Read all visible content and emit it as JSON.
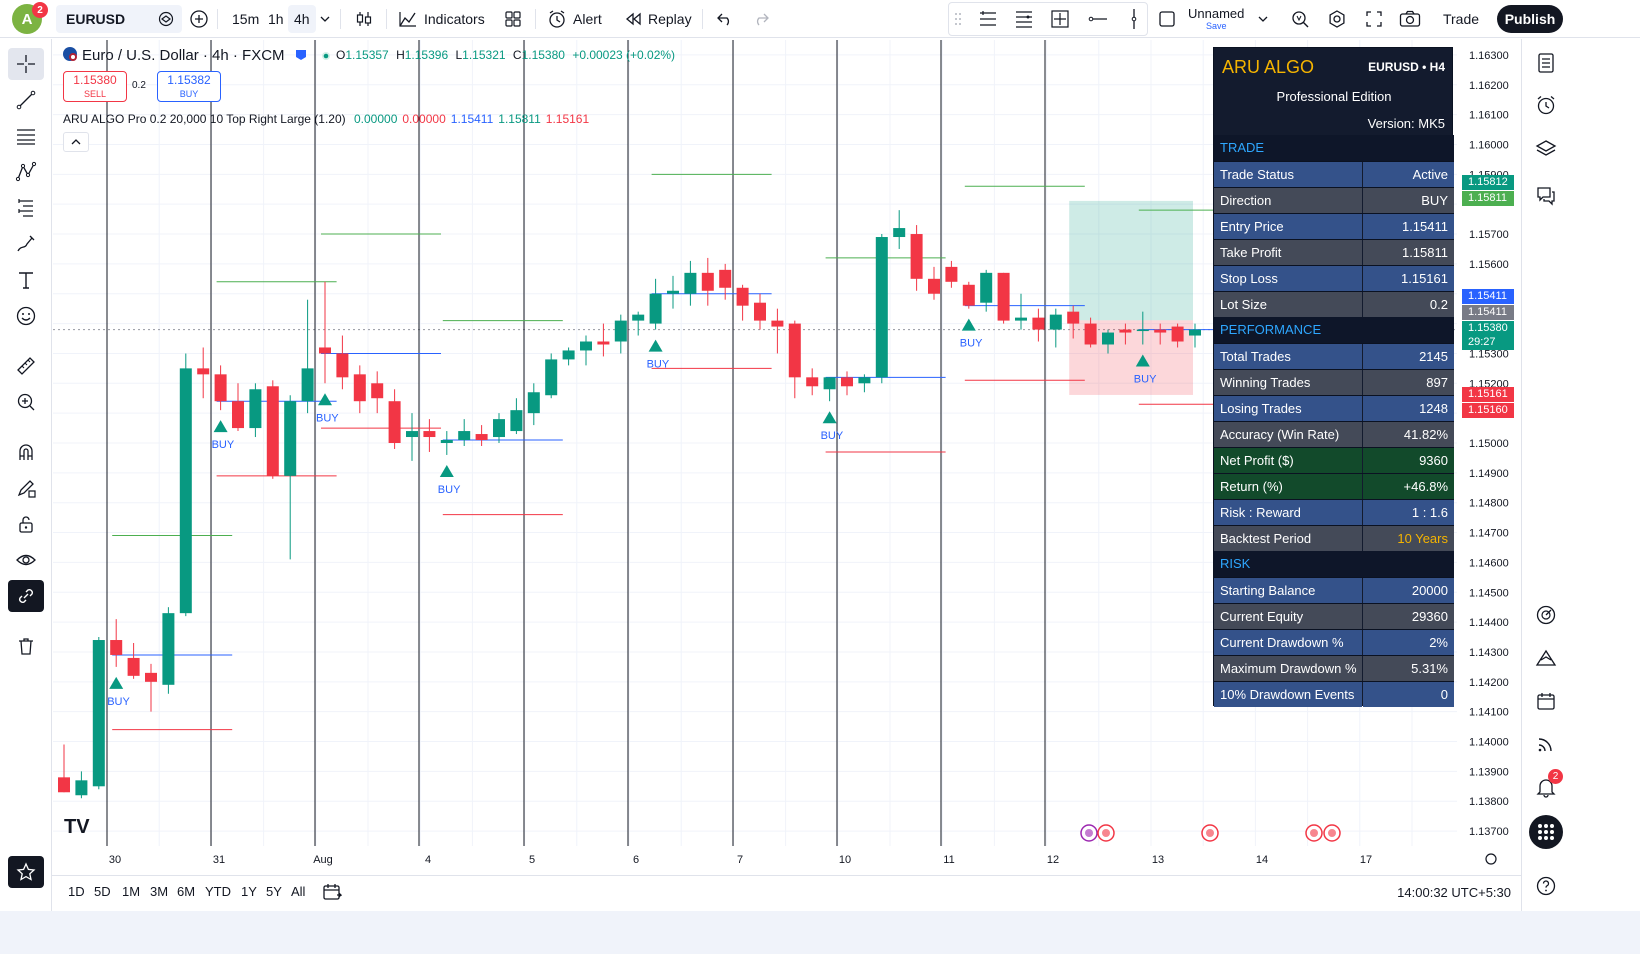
{
  "topbar": {
    "avatar_letter": "A",
    "avatar_badge": "2",
    "symbol": "EURUSD",
    "timeframes": [
      "15m",
      "1h",
      "4h"
    ],
    "active_timeframe": "4h",
    "indicators_label": "Indicators",
    "alert_label": "Alert",
    "replay_label": "Replay",
    "layout_name": "Unnamed",
    "save_label": "Save",
    "trade_label": "Trade",
    "publish_label": "Publish"
  },
  "legend": {
    "title": "Euro / U.S. Dollar · 4h · FXCM",
    "ohlc": [
      {
        "label": "O",
        "value": "1.15357"
      },
      {
        "label": "H",
        "value": "1.15396"
      },
      {
        "label": "L",
        "value": "1.15321"
      },
      {
        "label": "C",
        "value": "1.15380"
      }
    ],
    "change": "+0.00023 (+0.02%)",
    "sell_price": "1.15380",
    "sell_label": "SELL",
    "spread": "0.2",
    "buy_price": "1.15382",
    "buy_label": "BUY",
    "indicator_name": "ARU ALGO Pro",
    "indicator_params": "0.2 20,000 10 Top Right Large (1.20)",
    "indicator_values": [
      {
        "value": "0.00000",
        "color": "#089981"
      },
      {
        "value": "0.00000",
        "color": "#f23645"
      },
      {
        "value": "1.15411",
        "color": "#2962ff"
      },
      {
        "value": "1.15811",
        "color": "#089981"
      },
      {
        "value": "1.15161",
        "color": "#f23645"
      }
    ]
  },
  "panel": {
    "brand": "ARU ALGO",
    "pair": "EURUSD • H4",
    "edition": "Professional Edition",
    "version": "Version: MK5",
    "sections": [
      {
        "title": "TRADE",
        "rows": [
          {
            "label": "Trade Status",
            "value": "Active",
            "style": "c-blue"
          },
          {
            "label": "Direction",
            "value": "BUY",
            "style": "c-gray"
          },
          {
            "label": "Entry Price",
            "value": "1.15411",
            "style": "c-blue"
          },
          {
            "label": "Take Profit",
            "value": "1.15811",
            "style": "c-gray"
          },
          {
            "label": "Stop Loss",
            "value": "1.15161",
            "style": "c-blue"
          },
          {
            "label": "Lot Size",
            "value": "0.2",
            "style": "c-gray"
          }
        ]
      },
      {
        "title": "PERFORMANCE",
        "rows": [
          {
            "label": "Total Trades",
            "value": "2145",
            "style": "c-blue"
          },
          {
            "label": "Winning Trades",
            "value": "897",
            "style": "c-gray"
          },
          {
            "label": "Losing Trades",
            "value": "1248",
            "style": "c-blue"
          },
          {
            "label": "Accuracy (Win Rate)",
            "value": "41.82%",
            "style": "c-gray"
          },
          {
            "label": "Net Profit ($)",
            "value": "9360",
            "style": "c-green"
          },
          {
            "label": "Return (%)",
            "value": "+46.8%",
            "style": "c-green"
          },
          {
            "label": "Risk : Reward",
            "value": "1 : 1.6",
            "style": "c-blue"
          },
          {
            "label": "Backtest Period",
            "value": "10 Years",
            "style": "c-gray",
            "gold": true
          }
        ]
      },
      {
        "title": "RISK",
        "rows": [
          {
            "label": "Starting Balance",
            "value": "20000",
            "style": "c-blue"
          },
          {
            "label": "Current Equity",
            "value": "29360",
            "style": "c-gray"
          },
          {
            "label": "Current Drawdown %",
            "value": "2%",
            "style": "c-blue"
          },
          {
            "label": "Maximum Drawdown %",
            "value": "5.31%",
            "style": "c-gray"
          },
          {
            "label": "10% Drawdown Events",
            "value": "0",
            "style": "c-blue"
          }
        ]
      }
    ]
  },
  "price_axis": {
    "ticks": [
      "1.16300",
      "1.16200",
      "1.16100",
      "1.16000",
      "1.15900",
      "1.15700",
      "1.15600",
      "1.15300",
      "1.15200",
      "1.15000",
      "1.14900",
      "1.14800",
      "1.14700",
      "1.14600",
      "1.14500",
      "1.14400",
      "1.14300",
      "1.14200",
      "1.14100",
      "1.14000",
      "1.13900",
      "1.13800",
      "1.13700"
    ],
    "tags": [
      {
        "text": "1.15812",
        "color": "#089981"
      },
      {
        "text": "1.15811",
        "color": "#4caf50"
      },
      {
        "text": "1.15411",
        "color": "#2962ff"
      },
      {
        "text": "1.15411",
        "color": "#787b86"
      },
      {
        "text": "1.15380",
        "color": "#089981"
      },
      {
        "text": "29:27",
        "color": "#089981"
      },
      {
        "text": "1.15161",
        "color": "#f23645"
      },
      {
        "text": "1.15160",
        "color": "#f23645"
      }
    ]
  },
  "time_axis": {
    "labels": [
      "30",
      "31",
      "Aug",
      "4",
      "5",
      "6",
      "7",
      "10",
      "11",
      "12",
      "13",
      "14",
      "17"
    ]
  },
  "signals": {
    "buy_text": "BUY"
  },
  "chart_data": {
    "type": "candlestick",
    "symbol": "EURUSD",
    "interval": "4h",
    "ylim": [
      1.1365,
      1.1635
    ],
    "candles": [
      {
        "o": 1.1388,
        "h": 1.1399,
        "l": 1.1383,
        "c": 1.1383
      },
      {
        "o": 1.1382,
        "h": 1.139,
        "l": 1.1381,
        "c": 1.1387
      },
      {
        "o": 1.1385,
        "h": 1.1435,
        "l": 1.1384,
        "c": 1.1434
      },
      {
        "o": 1.1434,
        "h": 1.1441,
        "l": 1.1425,
        "c": 1.1429
      },
      {
        "o": 1.1428,
        "h": 1.1433,
        "l": 1.1421,
        "c": 1.1422
      },
      {
        "o": 1.1423,
        "h": 1.1426,
        "l": 1.141,
        "c": 1.142
      },
      {
        "o": 1.1419,
        "h": 1.1445,
        "l": 1.1416,
        "c": 1.1443
      },
      {
        "o": 1.1443,
        "h": 1.153,
        "l": 1.1442,
        "c": 1.1525
      },
      {
        "o": 1.1525,
        "h": 1.1532,
        "l": 1.1515,
        "c": 1.1523
      },
      {
        "o": 1.1523,
        "h": 1.1526,
        "l": 1.1511,
        "c": 1.1514
      },
      {
        "o": 1.1514,
        "h": 1.152,
        "l": 1.1504,
        "c": 1.1505
      },
      {
        "o": 1.1505,
        "h": 1.152,
        "l": 1.1502,
        "c": 1.1518
      },
      {
        "o": 1.1519,
        "h": 1.1521,
        "l": 1.1488,
        "c": 1.1489
      },
      {
        "o": 1.1489,
        "h": 1.1516,
        "l": 1.1461,
        "c": 1.1514
      },
      {
        "o": 1.1514,
        "h": 1.1548,
        "l": 1.151,
        "c": 1.1525
      },
      {
        "o": 1.1532,
        "h": 1.1554,
        "l": 1.152,
        "c": 1.153
      },
      {
        "o": 1.153,
        "h": 1.1536,
        "l": 1.1518,
        "c": 1.1522
      },
      {
        "o": 1.1523,
        "h": 1.1526,
        "l": 1.151,
        "c": 1.1514
      },
      {
        "o": 1.152,
        "h": 1.1524,
        "l": 1.151,
        "c": 1.1515
      },
      {
        "o": 1.1514,
        "h": 1.1518,
        "l": 1.1498,
        "c": 1.15
      },
      {
        "o": 1.1502,
        "h": 1.151,
        "l": 1.1494,
        "c": 1.1504
      },
      {
        "o": 1.1504,
        "h": 1.1508,
        "l": 1.1497,
        "c": 1.1502
      },
      {
        "o": 1.15,
        "h": 1.1504,
        "l": 1.1496,
        "c": 1.1501
      },
      {
        "o": 1.1501,
        "h": 1.1508,
        "l": 1.1499,
        "c": 1.1504
      },
      {
        "o": 1.1503,
        "h": 1.1506,
        "l": 1.1499,
        "c": 1.1501
      },
      {
        "o": 1.1502,
        "h": 1.151,
        "l": 1.15,
        "c": 1.1508
      },
      {
        "o": 1.1504,
        "h": 1.1515,
        "l": 1.1503,
        "c": 1.1511
      },
      {
        "o": 1.151,
        "h": 1.152,
        "l": 1.1506,
        "c": 1.1517
      },
      {
        "o": 1.1516,
        "h": 1.153,
        "l": 1.1515,
        "c": 1.1528
      },
      {
        "o": 1.1528,
        "h": 1.1532,
        "l": 1.1526,
        "c": 1.1531
      },
      {
        "o": 1.1531,
        "h": 1.1536,
        "l": 1.1526,
        "c": 1.1534
      },
      {
        "o": 1.1534,
        "h": 1.154,
        "l": 1.1529,
        "c": 1.1533
      },
      {
        "o": 1.1534,
        "h": 1.1543,
        "l": 1.153,
        "c": 1.1541
      },
      {
        "o": 1.1541,
        "h": 1.1544,
        "l": 1.1536,
        "c": 1.1543
      },
      {
        "o": 1.154,
        "h": 1.1555,
        "l": 1.1538,
        "c": 1.155
      },
      {
        "o": 1.155,
        "h": 1.1556,
        "l": 1.1545,
        "c": 1.1551
      },
      {
        "o": 1.155,
        "h": 1.1561,
        "l": 1.1546,
        "c": 1.1557
      },
      {
        "o": 1.1557,
        "h": 1.1562,
        "l": 1.1546,
        "c": 1.1551
      },
      {
        "o": 1.1558,
        "h": 1.156,
        "l": 1.1548,
        "c": 1.1552
      },
      {
        "o": 1.1552,
        "h": 1.1553,
        "l": 1.1541,
        "c": 1.1546
      },
      {
        "o": 1.1547,
        "h": 1.155,
        "l": 1.1538,
        "c": 1.1541
      },
      {
        "o": 1.1541,
        "h": 1.1545,
        "l": 1.153,
        "c": 1.1539
      },
      {
        "o": 1.154,
        "h": 1.1541,
        "l": 1.1515,
        "c": 1.1522
      },
      {
        "o": 1.1522,
        "h": 1.1525,
        "l": 1.1516,
        "c": 1.1519
      },
      {
        "o": 1.1518,
        "h": 1.1522,
        "l": 1.1514,
        "c": 1.1522
      },
      {
        "o": 1.1522,
        "h": 1.1524,
        "l": 1.1516,
        "c": 1.1519
      },
      {
        "o": 1.152,
        "h": 1.1523,
        "l": 1.1517,
        "c": 1.1522
      },
      {
        "o": 1.1522,
        "h": 1.157,
        "l": 1.152,
        "c": 1.1569
      },
      {
        "o": 1.1569,
        "h": 1.1578,
        "l": 1.1565,
        "c": 1.1572
      },
      {
        "o": 1.157,
        "h": 1.1573,
        "l": 1.1551,
        "c": 1.1555
      },
      {
        "o": 1.1555,
        "h": 1.1559,
        "l": 1.1548,
        "c": 1.155
      },
      {
        "o": 1.1559,
        "h": 1.1561,
        "l": 1.1552,
        "c": 1.1554
      },
      {
        "o": 1.1553,
        "h": 1.1554,
        "l": 1.1545,
        "c": 1.1546
      },
      {
        "o": 1.1547,
        "h": 1.1558,
        "l": 1.1544,
        "c": 1.1557
      },
      {
        "o": 1.1557,
        "h": 1.1557,
        "l": 1.154,
        "c": 1.1541
      },
      {
        "o": 1.1541,
        "h": 1.155,
        "l": 1.1538,
        "c": 1.1542
      },
      {
        "o": 1.1542,
        "h": 1.1545,
        "l": 1.1534,
        "c": 1.1538
      },
      {
        "o": 1.1538,
        "h": 1.1545,
        "l": 1.1532,
        "c": 1.1543
      },
      {
        "o": 1.1544,
        "h": 1.1546,
        "l": 1.1535,
        "c": 1.154
      },
      {
        "o": 1.154,
        "h": 1.1542,
        "l": 1.1532,
        "c": 1.1533
      },
      {
        "o": 1.1533,
        "h": 1.1538,
        "l": 1.153,
        "c": 1.1537
      },
      {
        "o": 1.1538,
        "h": 1.154,
        "l": 1.1533,
        "c": 1.1537
      },
      {
        "o": 1.1538,
        "h": 1.1544,
        "l": 1.1533,
        "c": 1.1538
      },
      {
        "o": 1.1538,
        "h": 1.154,
        "l": 1.1533,
        "c": 1.1537
      },
      {
        "o": 1.1539,
        "h": 1.154,
        "l": 1.1532,
        "c": 1.1534
      },
      {
        "o": 1.1536,
        "h": 1.154,
        "l": 1.1532,
        "c": 1.1538
      }
    ],
    "buy_signals_at_candle": [
      3,
      9,
      15,
      22,
      34,
      44,
      52,
      62
    ],
    "position": {
      "entry": 1.15411,
      "take_profit": 1.15811,
      "stop_loss": 1.15161
    }
  }
}
